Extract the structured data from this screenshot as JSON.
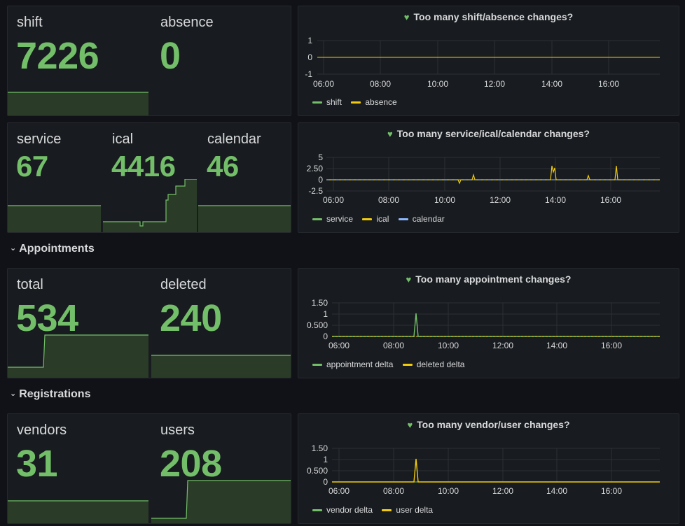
{
  "rows": [
    {
      "title": "Appointments",
      "chevron": "chevron-down-icon"
    },
    {
      "title": "Registrations",
      "chevron": "chevron-down-icon"
    }
  ],
  "stat_panels": [
    {
      "stats": [
        {
          "label": "shift",
          "value": "7226"
        },
        {
          "label": "absence",
          "value": "0"
        }
      ]
    },
    {
      "stats": [
        {
          "label": "service",
          "value": "67"
        },
        {
          "label": "ical",
          "value": "4416"
        },
        {
          "label": "calendar",
          "value": "46"
        }
      ]
    },
    {
      "stats": [
        {
          "label": "total",
          "value": "534"
        },
        {
          "label": "deleted",
          "value": "240"
        }
      ]
    },
    {
      "stats": [
        {
          "label": "vendors",
          "value": "31"
        },
        {
          "label": "users",
          "value": "208"
        }
      ]
    }
  ],
  "graphs": [
    {
      "title": "Too many shift/absence changes?",
      "icon": "heart-icon",
      "y_ticks": [
        "1",
        "0",
        "-1"
      ],
      "x_ticks": [
        "06:00",
        "08:00",
        "10:00",
        "12:00",
        "14:00",
        "16:00"
      ],
      "legend": [
        {
          "name": "shift",
          "color": "#73bf69"
        },
        {
          "name": "absence",
          "color": "#f2cc0c"
        }
      ]
    },
    {
      "title": "Too many service/ical/calendar changes?",
      "icon": "heart-icon",
      "y_ticks": [
        "5",
        "2.50",
        "0",
        "-2.5"
      ],
      "x_ticks": [
        "06:00",
        "08:00",
        "10:00",
        "12:00",
        "14:00",
        "16:00"
      ],
      "legend": [
        {
          "name": "service",
          "color": "#73bf69"
        },
        {
          "name": "ical",
          "color": "#f2cc0c"
        },
        {
          "name": "calendar",
          "color": "#8ab8ff"
        }
      ]
    },
    {
      "title": "Too many appointment changes?",
      "icon": "heart-icon",
      "y_ticks": [
        "1.50",
        "1",
        "0.500",
        "0"
      ],
      "x_ticks": [
        "06:00",
        "08:00",
        "10:00",
        "12:00",
        "14:00",
        "16:00"
      ],
      "legend": [
        {
          "name": "appointment delta",
          "color": "#73bf69"
        },
        {
          "name": "deleted delta",
          "color": "#f2cc0c"
        }
      ]
    },
    {
      "title": "Too many vendor/user changes?",
      "icon": "heart-icon",
      "y_ticks": [
        "1.50",
        "1",
        "0.500",
        "0"
      ],
      "x_ticks": [
        "06:00",
        "08:00",
        "10:00",
        "12:00",
        "14:00",
        "16:00"
      ],
      "legend": [
        {
          "name": "vendor delta",
          "color": "#73bf69"
        },
        {
          "name": "user delta",
          "color": "#f2cc0c"
        }
      ]
    }
  ]
}
